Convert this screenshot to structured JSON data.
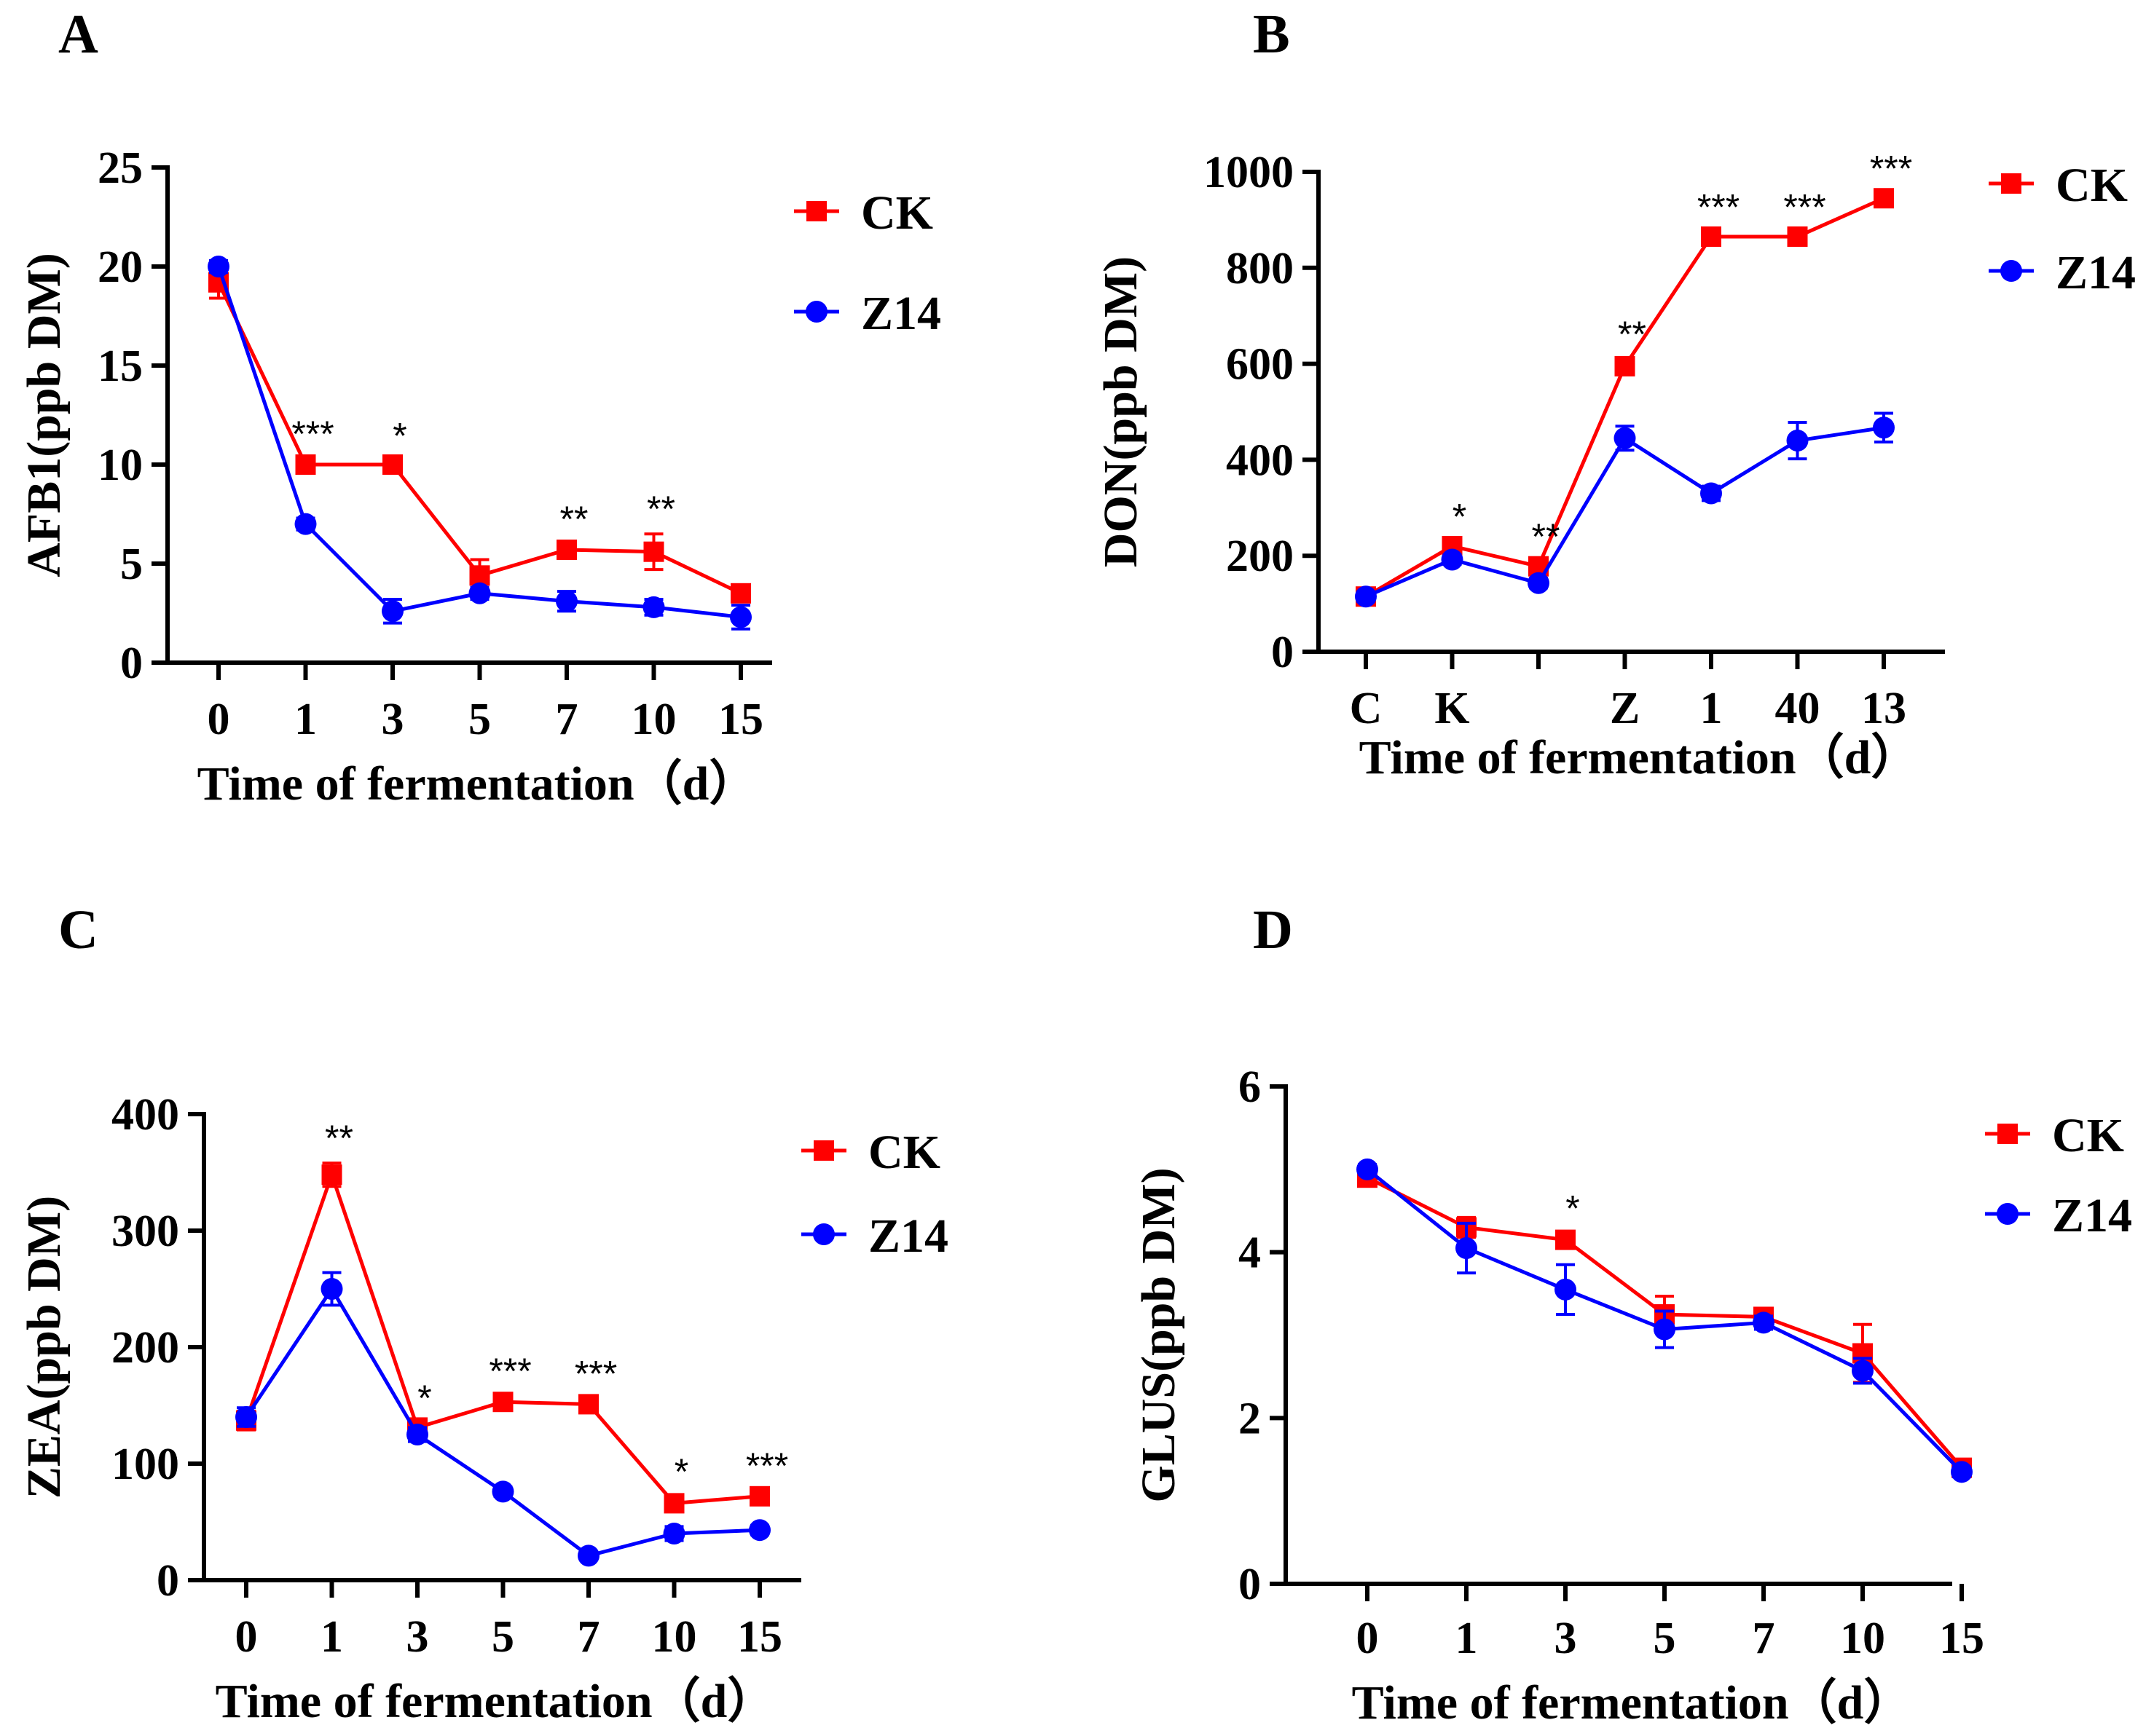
{
  "colors": {
    "CK": "#ff0000",
    "Z14": "#0000ff",
    "axis": "#000000"
  },
  "chart_data": [
    {
      "panel": "A",
      "type": "line",
      "ylabel": "AFB1(ppb DM)",
      "xlabel": "Time of fermentation（d）",
      "categories": [
        "0",
        "1",
        "3",
        "5",
        "7",
        "10",
        "15"
      ],
      "ylim": [
        0,
        25
      ],
      "yticks": [
        "0",
        "5",
        "10",
        "15",
        "20",
        "25"
      ],
      "series": [
        {
          "name": "CK",
          "marker": "square",
          "values": [
            19.2,
            10.0,
            10.0,
            4.4,
            5.7,
            5.6,
            3.5
          ],
          "errors": [
            0.8,
            0.3,
            0.2,
            0.8,
            0.3,
            0.9,
            0.2
          ]
        },
        {
          "name": "Z14",
          "marker": "circle",
          "values": [
            20.0,
            7.0,
            2.6,
            3.5,
            3.1,
            2.8,
            2.3
          ],
          "errors": [
            0.3,
            0.3,
            0.6,
            0.3,
            0.5,
            0.4,
            0.6
          ]
        }
      ],
      "significance": [
        "",
        "***",
        "*",
        "",
        "**",
        "**",
        ""
      ],
      "legend": [
        "CK",
        "Z14"
      ]
    },
    {
      "panel": "B",
      "type": "line",
      "ylabel": "DON(ppb DM)",
      "xlabel": "Time of fermentation（d）",
      "categories": [
        "C",
        "K",
        "",
        "Z",
        "1",
        "40",
        "13"
      ],
      "ylim": [
        0,
        1000
      ],
      "yticks": [
        "0",
        "200",
        "400",
        "600",
        "800",
        "1000"
      ],
      "series": [
        {
          "name": "CK",
          "marker": "square",
          "values": [
            115,
            220,
            178,
            595,
            865,
            865,
            945
          ],
          "errors": [
            10,
            10,
            10,
            15,
            10,
            10,
            10
          ]
        },
        {
          "name": "Z14",
          "marker": "circle",
          "values": [
            115,
            192,
            143,
            445,
            330,
            440,
            467
          ],
          "errors": [
            10,
            10,
            10,
            25,
            15,
            38,
            30
          ]
        }
      ],
      "significance": [
        "",
        "*",
        "**",
        "**",
        "***",
        "***",
        "***"
      ],
      "legend": [
        "CK",
        "Z14"
      ]
    },
    {
      "panel": "C",
      "type": "line",
      "ylabel": "ZEA(ppb DM)",
      "xlabel": "Time of fermentation（d）",
      "categories": [
        "0",
        "1",
        "3",
        "5",
        "7",
        "10",
        "15"
      ],
      "ylim": [
        0,
        400
      ],
      "yticks": [
        "0",
        "100",
        "200",
        "300",
        "400"
      ],
      "series": [
        {
          "name": "CK",
          "marker": "square",
          "values": [
            137,
            348,
            131,
            153,
            151,
            66,
            72
          ],
          "errors": [
            8,
            10,
            4,
            5,
            5,
            6,
            5
          ]
        },
        {
          "name": "Z14",
          "marker": "circle",
          "values": [
            140,
            250,
            125,
            76,
            21,
            40,
            43
          ],
          "errors": [
            8,
            14,
            6,
            4,
            3,
            6,
            4
          ]
        }
      ],
      "significance": [
        "",
        "**",
        "*",
        "***",
        "***",
        "*",
        "***"
      ],
      "legend": [
        "CK",
        "Z14"
      ]
    },
    {
      "panel": "D",
      "type": "line",
      "ylabel": "GLUS(ppb DM)",
      "xlabel": "Time of fermentation（d）",
      "categories": [
        "0",
        "1",
        "3",
        "5",
        "7",
        "10",
        "15"
      ],
      "ylim": [
        0,
        6
      ],
      "yticks": [
        "0",
        "2",
        "4",
        "6"
      ],
      "series": [
        {
          "name": "CK",
          "marker": "square",
          "values": [
            4.9,
            4.3,
            4.15,
            3.25,
            3.22,
            2.78,
            1.4
          ],
          "errors": [
            0.08,
            0.12,
            0.08,
            0.22,
            0.08,
            0.35,
            0.06
          ]
        },
        {
          "name": "Z14",
          "marker": "circle",
          "values": [
            5.0,
            4.05,
            3.55,
            3.07,
            3.15,
            2.57,
            1.35
          ],
          "errors": [
            0.06,
            0.3,
            0.3,
            0.22,
            0.08,
            0.15,
            0.06
          ]
        }
      ],
      "significance": [
        "",
        "",
        "*",
        "",
        "",
        "",
        ""
      ],
      "legend": [
        "CK",
        "Z14"
      ]
    }
  ]
}
